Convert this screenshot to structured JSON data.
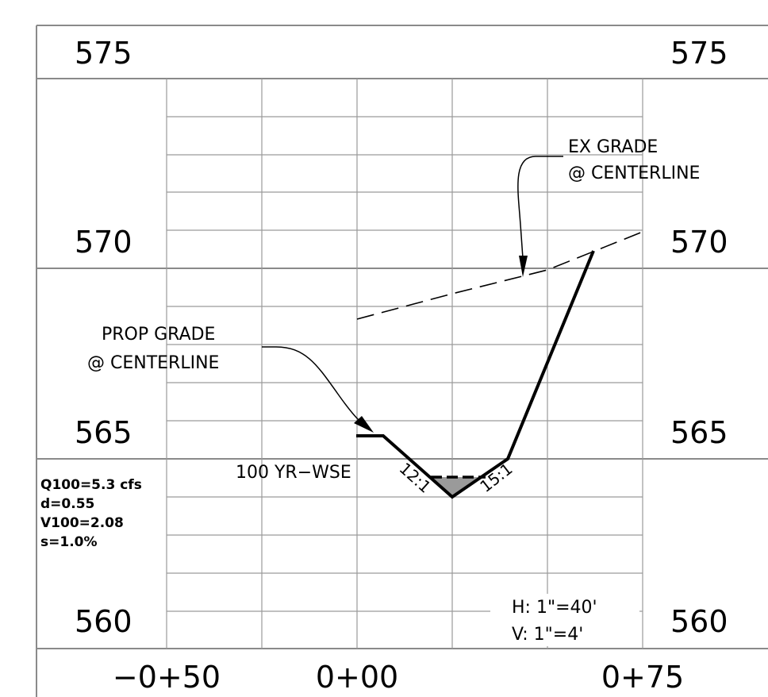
{
  "elevations": {
    "left": [
      "575",
      "570",
      "565",
      "560"
    ],
    "right": [
      "575",
      "570",
      "565",
      "560"
    ]
  },
  "stations": [
    "−0+50",
    "0+00",
    "0+75"
  ],
  "labels": {
    "ex_grade": [
      "EX GRADE",
      "@ CENTERLINE"
    ],
    "prop_grade": [
      "PROP GRADE",
      "@ CENTERLINE"
    ],
    "wse": "100 YR−WSE",
    "slope_left": "12:1",
    "slope_right": "15:1"
  },
  "hydraulics": [
    "Q100=5.3 cfs",
    "d=0.55",
    "V100=2.08",
    "s=1.0%"
  ],
  "scale": [
    "H:  1\"=40'",
    "V:  1\"=4'"
  ]
}
